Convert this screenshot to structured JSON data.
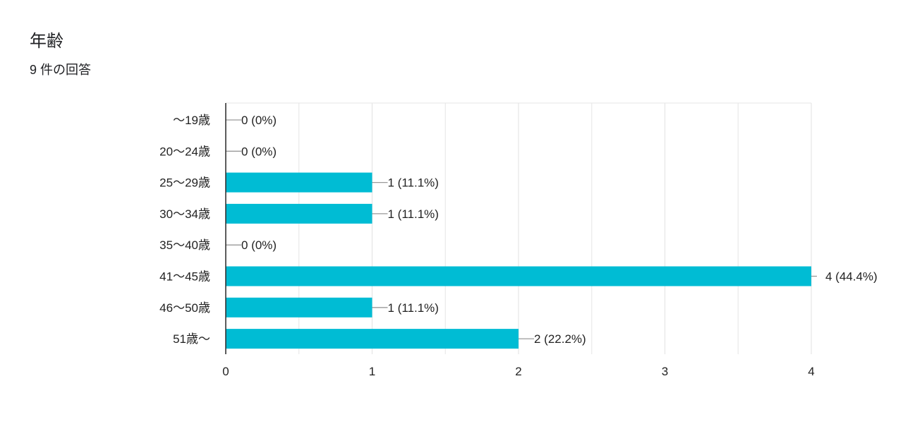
{
  "header": {
    "title": "年齢",
    "response_count": "9 件の回答"
  },
  "chart_data": {
    "type": "bar",
    "orientation": "horizontal",
    "categories": [
      "〜19歳",
      "20〜24歳",
      "25〜29歳",
      "30〜34歳",
      "35〜40歳",
      "41〜45歳",
      "46〜50歳",
      "51歳〜"
    ],
    "values": [
      0,
      0,
      1,
      1,
      0,
      4,
      1,
      2
    ],
    "value_labels": [
      "0 (0%)",
      "0 (0%)",
      "1 (11.1%)",
      "1 (11.1%)",
      "0 (0%)",
      "4 (44.4%)",
      "1 (11.1%)",
      "2 (22.2%)"
    ],
    "xlim": [
      0,
      4
    ],
    "xticks": [
      "0",
      "1",
      "2",
      "3",
      "4"
    ],
    "xlabel": "",
    "ylabel": "",
    "grid": true,
    "legend": "none",
    "colors": {
      "bar": "#00bcd4",
      "grid": "#e6e6e6",
      "axis": "#333333",
      "leader": "#999999",
      "text": "#222222"
    }
  }
}
